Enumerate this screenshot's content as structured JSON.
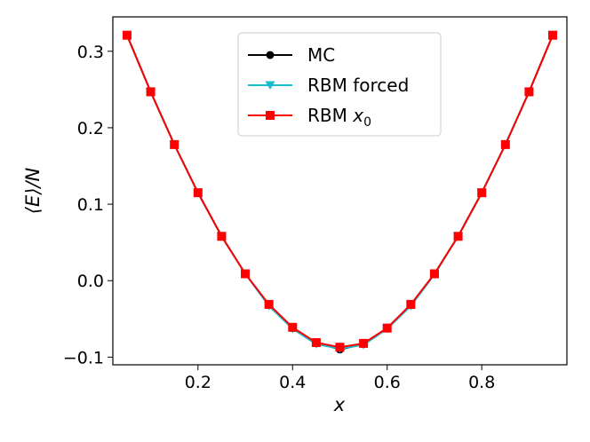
{
  "chart_data": {
    "type": "line",
    "xlabel": "x",
    "ylabel": "⟨E⟩/N",
    "xlim": [
      0.02,
      0.98
    ],
    "ylim": [
      -0.11,
      0.345
    ],
    "x_ticks": [
      "0.2",
      "0.4",
      "0.6",
      "0.8"
    ],
    "y_ticks": [
      "−0.1",
      "0.0",
      "0.1",
      "0.2",
      "0.3"
    ],
    "legend_position": "top-center",
    "x": [
      0.05,
      0.1,
      0.15,
      0.2,
      0.25,
      0.3,
      0.35,
      0.4,
      0.45,
      0.5,
      0.55,
      0.6,
      0.65,
      0.7,
      0.75,
      0.8,
      0.85,
      0.9,
      0.95
    ],
    "series": [
      {
        "name": "MC",
        "color": "#000000",
        "marker": "circle",
        "values": [
          0.321,
          0.247,
          0.178,
          0.115,
          0.058,
          0.009,
          -0.032,
          -0.062,
          -0.081,
          -0.09,
          -0.083,
          -0.062,
          -0.032,
          0.009,
          0.058,
          0.115,
          0.178,
          0.247,
          0.321
        ]
      },
      {
        "name": "RBM forced",
        "color": "#17becf",
        "marker": "triangle-down",
        "values": [
          0.321,
          0.247,
          0.178,
          0.115,
          0.058,
          0.009,
          -0.033,
          -0.063,
          -0.083,
          -0.089,
          -0.084,
          -0.063,
          -0.033,
          0.008,
          0.058,
          0.115,
          0.178,
          0.247,
          0.321
        ]
      },
      {
        "name_prefix": "RBM ",
        "name_var": "x",
        "name_sub": "0",
        "color": "#ff0000",
        "marker": "square",
        "values": [
          0.321,
          0.247,
          0.178,
          0.115,
          0.058,
          0.009,
          -0.031,
          -0.061,
          -0.081,
          -0.087,
          -0.082,
          -0.062,
          -0.031,
          0.009,
          0.058,
          0.115,
          0.178,
          0.247,
          0.321
        ]
      }
    ]
  }
}
